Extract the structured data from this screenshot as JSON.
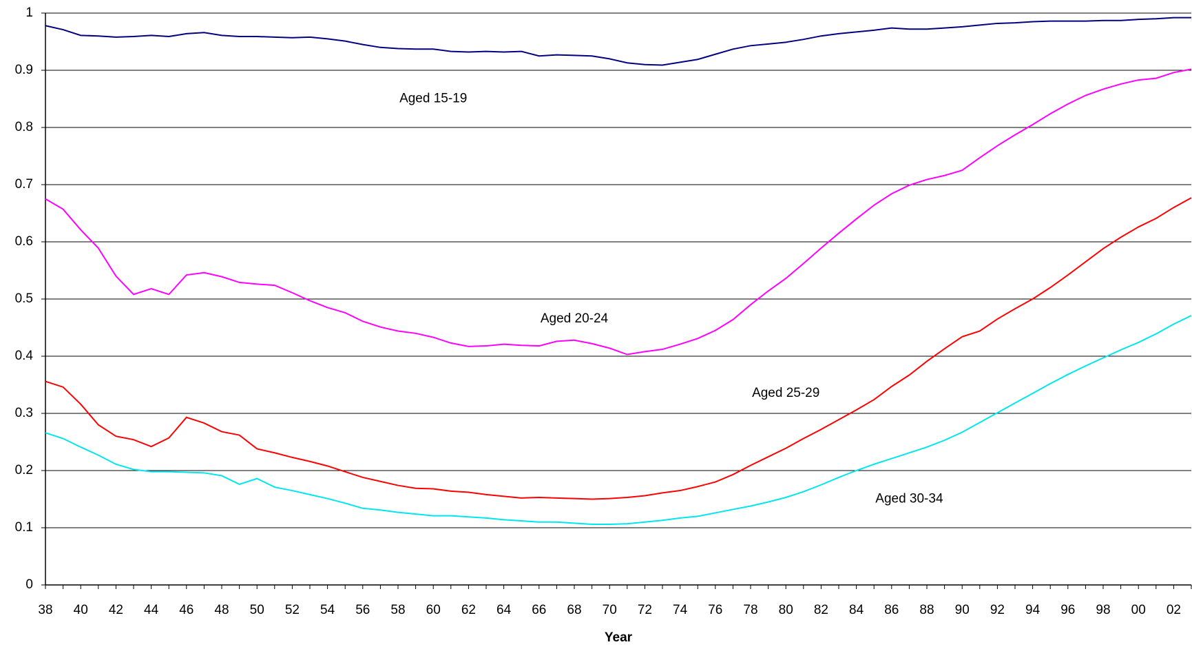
{
  "chart_data": {
    "type": "line",
    "x_label": "Year",
    "categories": [
      "38",
      null,
      "40",
      null,
      "42",
      null,
      "44",
      null,
      "46",
      null,
      "48",
      null,
      "50",
      null,
      "52",
      null,
      "54",
      null,
      "56",
      null,
      "58",
      null,
      "60",
      null,
      "62",
      null,
      "64",
      null,
      "66",
      null,
      "68",
      null,
      "70",
      null,
      "72",
      null,
      "74",
      null,
      "76",
      null,
      "78",
      null,
      "80",
      null,
      "82",
      null,
      "84",
      null,
      "86",
      null,
      "88",
      null,
      "90",
      null,
      "92",
      null,
      "94",
      null,
      "96",
      null,
      "98",
      null,
      "00",
      null,
      "02",
      null
    ],
    "ylim": [
      0,
      1
    ],
    "yticks": [
      0,
      0.1,
      0.2,
      0.3,
      0.4,
      0.5,
      0.6,
      0.7,
      0.8,
      0.9,
      1
    ],
    "grid": true,
    "series": [
      {
        "name": "Aged 15-19",
        "color": "#000080",
        "values": [
          0.978,
          0.971,
          0.961,
          0.96,
          0.958,
          0.959,
          0.961,
          0.959,
          0.964,
          0.966,
          0.961,
          0.959,
          0.959,
          0.958,
          0.957,
          0.958,
          0.955,
          0.951,
          0.945,
          0.94,
          0.938,
          0.937,
          0.937,
          0.933,
          0.932,
          0.933,
          0.932,
          0.933,
          0.925,
          0.927,
          0.926,
          0.925,
          0.92,
          0.913,
          0.91,
          0.909,
          0.914,
          0.919,
          0.928,
          0.937,
          0.943,
          0.946,
          0.949,
          0.954,
          0.96,
          0.964,
          0.967,
          0.97,
          0.974,
          0.972,
          0.972,
          0.974,
          0.976,
          0.979,
          0.982,
          0.983,
          0.985,
          0.986,
          0.986,
          0.986,
          0.987,
          0.987,
          0.989,
          0.99,
          0.992,
          0.992
        ]
      },
      {
        "name": "Aged 20-24",
        "color": "#ff00ff",
        "values": [
          0.675,
          0.657,
          0.621,
          0.589,
          0.54,
          0.508,
          0.518,
          0.508,
          0.542,
          0.546,
          0.539,
          0.529,
          0.526,
          0.524,
          0.511,
          0.497,
          0.485,
          0.476,
          0.461,
          0.451,
          0.444,
          0.44,
          0.433,
          0.423,
          0.417,
          0.418,
          0.421,
          0.419,
          0.418,
          0.426,
          0.428,
          0.422,
          0.414,
          0.403,
          0.408,
          0.412,
          0.421,
          0.431,
          0.445,
          0.464,
          0.49,
          0.514,
          0.536,
          0.562,
          0.589,
          0.615,
          0.64,
          0.664,
          0.684,
          0.699,
          0.709,
          0.716,
          0.725,
          0.747,
          0.768,
          0.787,
          0.805,
          0.824,
          0.841,
          0.856,
          0.867,
          0.876,
          0.883,
          0.886,
          0.896,
          0.902
        ]
      },
      {
        "name": "Aged 25-29",
        "color": "#ff0000",
        "values": [
          0.356,
          0.346,
          0.316,
          0.28,
          0.26,
          0.254,
          0.242,
          0.257,
          0.293,
          0.283,
          0.268,
          0.262,
          0.238,
          0.231,
          0.223,
          0.216,
          0.208,
          0.198,
          0.188,
          0.181,
          0.174,
          0.169,
          0.168,
          0.164,
          0.162,
          0.158,
          0.155,
          0.152,
          0.153,
          0.152,
          0.151,
          0.15,
          0.151,
          0.153,
          0.156,
          0.161,
          0.165,
          0.172,
          0.18,
          0.193,
          0.209,
          0.224,
          0.239,
          0.256,
          0.272,
          0.289,
          0.306,
          0.324,
          0.347,
          0.367,
          0.391,
          0.413,
          0.434,
          0.444,
          0.465,
          0.483,
          0.5,
          0.52,
          0.542,
          0.565,
          0.588,
          0.608,
          0.626,
          0.641,
          0.66,
          0.677
        ]
      },
      {
        "name": "Aged 30-34",
        "color": "#00e5ee",
        "values": [
          0.266,
          0.256,
          0.241,
          0.227,
          0.211,
          0.202,
          0.198,
          0.198,
          0.197,
          0.196,
          0.191,
          0.176,
          0.186,
          0.171,
          0.165,
          0.158,
          0.151,
          0.143,
          0.134,
          0.131,
          0.127,
          0.124,
          0.121,
          0.121,
          0.119,
          0.117,
          0.114,
          0.112,
          0.11,
          0.11,
          0.108,
          0.106,
          0.106,
          0.107,
          0.11,
          0.113,
          0.117,
          0.12,
          0.126,
          0.132,
          0.138,
          0.145,
          0.153,
          0.163,
          0.175,
          0.188,
          0.2,
          0.211,
          0.221,
          0.231,
          0.241,
          0.253,
          0.267,
          0.284,
          0.301,
          0.318,
          0.335,
          0.352,
          0.368,
          0.383,
          0.397,
          0.411,
          0.424,
          0.439,
          0.456,
          0.471
        ]
      }
    ]
  }
}
